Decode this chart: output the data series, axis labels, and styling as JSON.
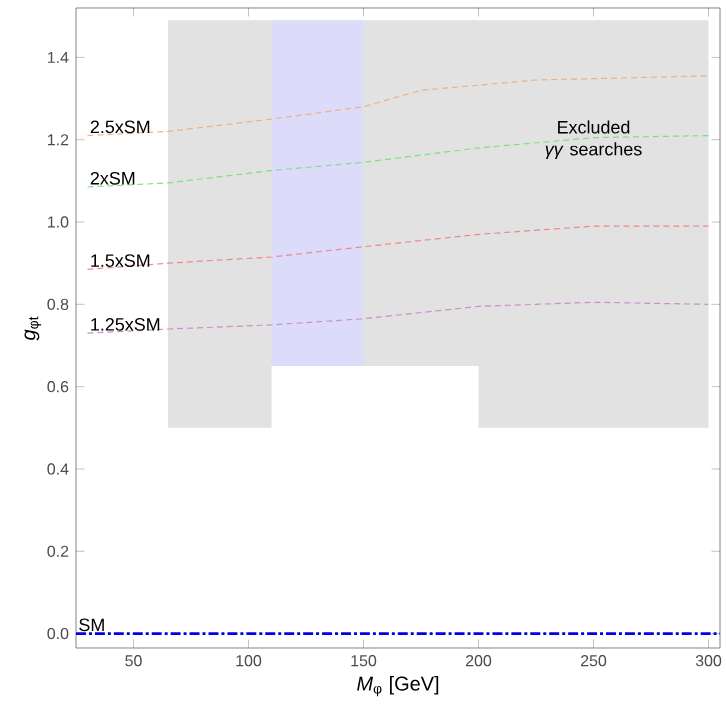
{
  "chart_data": {
    "type": "line",
    "xlabel": "*M*$_{φ}$ [GeV]",
    "ylabel": "*g*$_{φt}$",
    "xlim": [
      25,
      305
    ],
    "ylim": [
      -0.035,
      1.52
    ],
    "xticks": [
      50,
      100,
      150,
      200,
      250,
      300
    ],
    "yticks": [
      {
        "value": 0,
        "label": "0.0"
      },
      {
        "value": 0.2,
        "label": "0.2"
      },
      {
        "value": 0.4,
        "label": "0.4"
      },
      {
        "value": 0.6,
        "label": "0.6"
      },
      {
        "value": 0.8,
        "label": "0.8"
      },
      {
        "value": 1.0,
        "label": "1.0"
      },
      {
        "value": 1.2,
        "label": "1.2"
      },
      {
        "value": 1.4,
        "label": "1.4"
      }
    ],
    "grid": false,
    "marker": "none",
    "annotations": [
      {
        "text": "Excluded *γγ* searches",
        "x": 250,
        "y": 1.2
      }
    ],
    "series": [
      {
        "color": "#e2e2e2",
        "x": [
          65,
          110,
          110,
          200,
          200,
          300
        ],
        "values": [
          null,
          null,
          null,
          null,
          null,
          null
        ],
        "upper": [
          1.49,
          1.49,
          1.49,
          1.49,
          1.49,
          1.49
        ],
        "lower": [
          0.5,
          0.5,
          0.65,
          0.65,
          0.5,
          0.5
        ]
      },
      {
        "color": "#dcdcfa",
        "x": [
          110,
          150
        ],
        "values": [
          null,
          null
        ],
        "upper": [
          1.49,
          1.49
        ],
        "lower": [
          0.65,
          0.65
        ]
      },
      {
        "name": "2.5xSM",
        "color": "#f0b080",
        "line_style": "dashed",
        "x": [
          30,
          65,
          110,
          150,
          175,
          225,
          300
        ],
        "values": [
          1.21,
          1.22,
          1.25,
          1.28,
          1.32,
          1.345,
          1.355
        ]
      },
      {
        "name": "2xSM",
        "color": "#80e080",
        "line_style": "dashed",
        "x": [
          30,
          65,
          110,
          150,
          200,
          250,
          300
        ],
        "values": [
          1.085,
          1.095,
          1.125,
          1.145,
          1.18,
          1.205,
          1.21
        ]
      },
      {
        "name": "1.5xSM",
        "color": "#f08888",
        "line_style": "dashed",
        "x": [
          30,
          65,
          110,
          150,
          200,
          250,
          300
        ],
        "values": [
          0.885,
          0.9,
          0.915,
          0.94,
          0.97,
          0.99,
          0.99
        ]
      },
      {
        "name": "1.25xSM",
        "color": "#c890c8",
        "line_style": "dashed",
        "x": [
          30,
          65,
          110,
          150,
          200,
          250,
          300
        ],
        "values": [
          0.73,
          0.74,
          0.75,
          0.765,
          0.795,
          0.805,
          0.8
        ]
      },
      {
        "name": "SM",
        "color": "#0000ee",
        "line_style": "dashdot",
        "x": [
          25,
          305
        ],
        "values": [
          0,
          0
        ]
      }
    ]
  }
}
